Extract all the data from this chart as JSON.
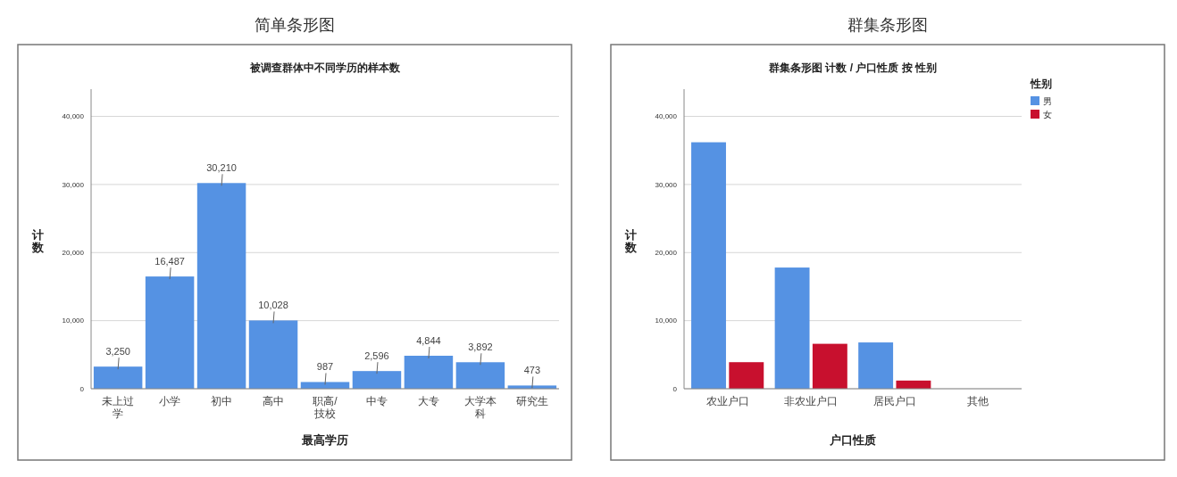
{
  "chart_data": [
    {
      "type": "bar",
      "title": "简单条形图",
      "subtitle": "被调查群体中不同学历的样本数",
      "xlabel": "最高学历",
      "ylabel": "计数",
      "categories": [
        "未上过学",
        "小学",
        "初中",
        "高中",
        "职高/技校",
        "中专",
        "大专",
        "大学本科",
        "研究生"
      ],
      "values": [
        3250,
        16487,
        30210,
        10028,
        987,
        2596,
        4844,
        3892,
        473
      ],
      "color": "#5592e3",
      "value_labels": [
        "3,250",
        "16,487",
        "30,210",
        "10,028",
        "987",
        "2,596",
        "4,844",
        "3,892",
        "473"
      ],
      "ylim": [
        0,
        44000
      ],
      "yticks": [
        {
          "value": 0,
          "label": "0"
        },
        {
          "value": 10000,
          "label": "10,000"
        },
        {
          "value": 20000,
          "label": "20,000"
        },
        {
          "value": 30000,
          "label": "30,000"
        },
        {
          "value": 40000,
          "label": "40,000"
        }
      ],
      "grid": "y"
    },
    {
      "type": "bar",
      "title": "群集条形图",
      "subtitle": "群集条形图 计数 / 户口性质 按 性别",
      "xlabel": "户口性质",
      "ylabel": "计数",
      "legend_title": "性别",
      "categories": [
        "农业户口",
        "非农业户口",
        "居民户口",
        "其他"
      ],
      "series": [
        {
          "name": "男",
          "color": "#5592e3",
          "values": [
            36200,
            17800,
            6800,
            0
          ]
        },
        {
          "name": "女",
          "color": "#c8102e",
          "values": [
            3900,
            6600,
            1200,
            0
          ]
        }
      ],
      "ylim": [
        0,
        44000
      ],
      "yticks": [
        {
          "value": 0,
          "label": "0"
        },
        {
          "value": 10000,
          "label": "10,000"
        },
        {
          "value": 20000,
          "label": "20,000"
        },
        {
          "value": 30000,
          "label": "30,000"
        },
        {
          "value": 40000,
          "label": "40,000"
        }
      ],
      "grid": "y",
      "legend": "top right"
    }
  ]
}
